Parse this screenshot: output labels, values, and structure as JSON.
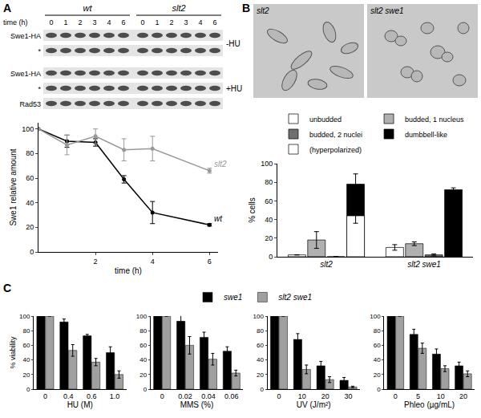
{
  "panel_labels": [
    "A",
    "B",
    "C"
  ],
  "blots": {
    "genotypes": [
      "wt",
      "slt2"
    ],
    "time_label": "time (h)",
    "times": [
      "0",
      "1",
      "2",
      "3",
      "4",
      "6"
    ],
    "sections": [
      {
        "condition": "-HU",
        "rows": [
          "Swe1-HA",
          "*"
        ]
      },
      {
        "condition": "+HU",
        "rows": [
          "Swe1-HA",
          "*",
          "Rad53"
        ]
      }
    ]
  },
  "images": [
    "slt2",
    "slt2 swe1"
  ],
  "chart_data": [
    {
      "type": "line",
      "x_label": "time (h)",
      "y_label": "Swe1 relative amount",
      "x": [
        0,
        1,
        2,
        3,
        4,
        6
      ],
      "xlim": [
        0,
        6.3
      ],
      "xticks": [
        2,
        4,
        6
      ],
      "ylim": [
        0,
        105
      ],
      "yticks": [
        0,
        20,
        40,
        60,
        80,
        100
      ],
      "grid": false,
      "series": [
        {
          "name": "wt",
          "color": "#000000",
          "marker": "circle",
          "values": [
            100,
            90,
            89,
            59,
            32,
            22
          ],
          "errors": [
            0,
            5,
            3,
            3,
            9,
            1
          ]
        },
        {
          "name": "slt2",
          "color": "#999999",
          "marker": "circle",
          "values": [
            100,
            87,
            94,
            83,
            84,
            66
          ],
          "errors": [
            0,
            8,
            6,
            9,
            10,
            2
          ]
        }
      ]
    },
    {
      "type": "bar",
      "y_label": "% cells",
      "categories": [
        "slt2",
        "slt2 swe1"
      ],
      "ylim": [
        0,
        100
      ],
      "yticks": [
        0,
        20,
        40,
        60,
        80,
        100
      ],
      "grid": false,
      "legend": "top",
      "series": [
        {
          "name": "unbudded",
          "color": "#ffffff",
          "values": [
            2,
            10
          ],
          "errors": [
            0,
            3
          ]
        },
        {
          "name": "budded, 1 nucleus",
          "color": "#b0b0b0",
          "values": [
            18,
            14
          ],
          "errors": [
            9,
            2
          ]
        },
        {
          "name": "budded, 2 nuclei",
          "color": "#707070",
          "values": [
            0,
            2
          ],
          "errors": [
            0,
            1
          ]
        },
        {
          "name": "dumbbell-like",
          "color": "#000000",
          "values": [
            78,
            72
          ],
          "errors": [
            11,
            2
          ]
        },
        {
          "name": "(hyperpolarized)",
          "color": "#ffffff",
          "type": "overlay",
          "values": [
            44,
            null
          ],
          "errors": [
            8,
            null
          ]
        }
      ]
    },
    {
      "type": "bar",
      "x_label": "HU (M)",
      "y_label": "% viability",
      "categories": [
        "0",
        "0.4",
        "0.6",
        "1.0"
      ],
      "ylim": [
        0,
        100
      ],
      "yticks": [
        0,
        20,
        40,
        60,
        80,
        100
      ],
      "grid": false,
      "legend": "top",
      "series": [
        {
          "name": "swe1",
          "color": "#000000",
          "values": [
            100,
            92,
            73,
            50
          ],
          "errors": [
            0,
            4,
            2,
            8
          ]
        },
        {
          "name": "slt2 swe1",
          "color": "#a0a0a0",
          "values": [
            100,
            53,
            37,
            20
          ],
          "errors": [
            0,
            8,
            5,
            5
          ]
        }
      ]
    },
    {
      "type": "bar",
      "x_label": "MMS (%)",
      "categories": [
        "0",
        "0.02",
        "0.04",
        "0.06"
      ],
      "ylim": [
        0,
        100
      ],
      "yticks": [
        0,
        20,
        40,
        60,
        80,
        100
      ],
      "grid": false,
      "series": [
        {
          "name": "swe1",
          "color": "#000000",
          "values": [
            100,
            93,
            71,
            52
          ],
          "errors": [
            0,
            10,
            7,
            6
          ]
        },
        {
          "name": "slt2 swe1",
          "color": "#a0a0a0",
          "values": [
            100,
            60,
            41,
            22
          ],
          "errors": [
            0,
            12,
            8,
            4
          ]
        }
      ]
    },
    {
      "type": "bar",
      "x_label": "UV (J/m²)",
      "categories": [
        "0",
        "10",
        "20",
        "30"
      ],
      "ylim": [
        0,
        100
      ],
      "yticks": [
        0,
        20,
        40,
        60,
        80,
        100
      ],
      "grid": false,
      "series": [
        {
          "name": "swe1",
          "color": "#000000",
          "values": [
            100,
            68,
            32,
            12
          ],
          "errors": [
            0,
            8,
            6,
            4
          ]
        },
        {
          "name": "slt2 swe1",
          "color": "#a0a0a0",
          "values": [
            100,
            27,
            13,
            3
          ],
          "errors": [
            0,
            6,
            4,
            1
          ]
        }
      ]
    },
    {
      "type": "bar",
      "x_label": "Phleo (µg/mL)",
      "categories": [
        "0",
        "5",
        "10",
        "20"
      ],
      "ylim": [
        0,
        100
      ],
      "yticks": [
        0,
        20,
        40,
        60,
        80,
        100
      ],
      "grid": false,
      "series": [
        {
          "name": "swe1",
          "color": "#000000",
          "values": [
            100,
            75,
            48,
            32
          ],
          "errors": [
            0,
            7,
            7,
            5
          ]
        },
        {
          "name": "slt2 swe1",
          "color": "#a0a0a0",
          "values": [
            100,
            56,
            28,
            21
          ],
          "errors": [
            0,
            7,
            4,
            4
          ]
        }
      ]
    }
  ]
}
